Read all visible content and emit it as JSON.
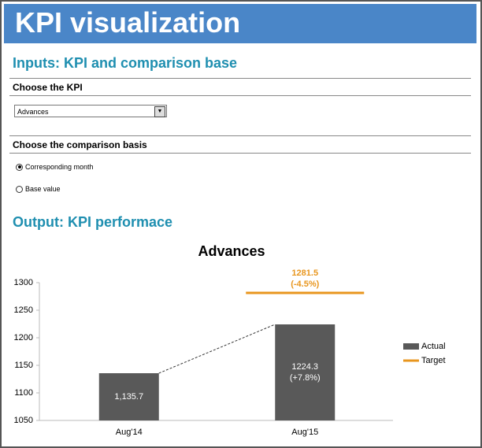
{
  "header": {
    "title": "KPI visualization"
  },
  "inputs": {
    "title": "Inputs: KPI and comparison base",
    "kpi_label": "Choose the KPI",
    "kpi_selected": "Advances",
    "basis_label": "Choose the comparison basis",
    "options": [
      "Corresponding month",
      "Base value"
    ],
    "selected_option": 0
  },
  "output": {
    "title": "Output: KPI performace"
  },
  "chart_data": {
    "type": "bar",
    "title": "Advances",
    "categories": [
      "Aug'14",
      "Aug'15"
    ],
    "series": [
      {
        "name": "Actual",
        "color": "#595959",
        "values": [
          1135.7,
          1224.3
        ],
        "value_labels": [
          "1,135.7",
          "1224.3\n(+7.8%)"
        ]
      },
      {
        "name": "Target",
        "color": "#e8961e",
        "values": [
          null,
          1281.5
        ],
        "value_labels": [
          null,
          "1281.5\n(-4.5%)"
        ]
      }
    ],
    "ylim": [
      1050,
      1300
    ],
    "yticks": [
      1050,
      1100,
      1150,
      1200,
      1250,
      1300
    ],
    "legend": "right"
  }
}
